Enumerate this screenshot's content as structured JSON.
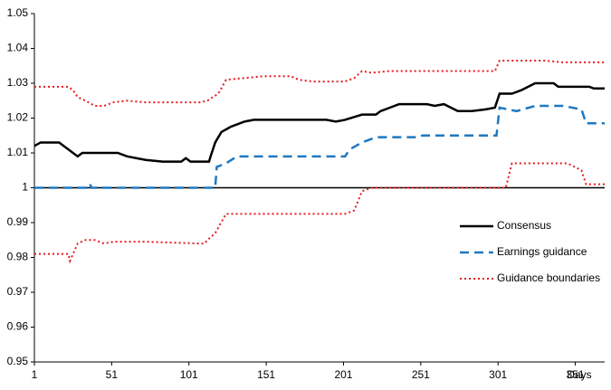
{
  "chart_data": {
    "type": "line",
    "x_label": "Days",
    "xlim": [
      1,
      370
    ],
    "xticks": [
      1,
      51,
      101,
      151,
      201,
      251,
      301,
      351
    ],
    "ylim": [
      0.95,
      1.05
    ],
    "yticks": [
      0.95,
      0.96,
      0.97,
      0.98,
      0.99,
      1,
      1.01,
      1.02,
      1.03,
      1.04,
      1.05
    ],
    "reference_line": 1,
    "grid": false,
    "legend": "right",
    "series": [
      {
        "name": "Consensus",
        "color": "#000000",
        "dash": "solid",
        "x": [
          1,
          5,
          17,
          29,
          32,
          55,
          61,
          73,
          84,
          96,
          99,
          102,
          114,
          115,
          118,
          122,
          128,
          137,
          143,
          190,
          196,
          202,
          213,
          222,
          225,
          237,
          255,
          260,
          266,
          275,
          284,
          293,
          299,
          302,
          310,
          316,
          325,
          337,
          340,
          360,
          363,
          370
        ],
        "values": [
          1.012,
          1.013,
          1.013,
          1.009,
          1.01,
          1.01,
          1.009,
          1.008,
          1.0075,
          1.0075,
          1.0085,
          1.0075,
          1.0075,
          1.009,
          1.013,
          1.016,
          1.0175,
          1.019,
          1.0195,
          1.0195,
          1.019,
          1.0195,
          1.021,
          1.021,
          1.022,
          1.024,
          1.024,
          1.0235,
          1.024,
          1.022,
          1.022,
          1.0225,
          1.023,
          1.027,
          1.027,
          1.028,
          1.03,
          1.03,
          1.029,
          1.029,
          1.0285,
          1.0285
        ]
      },
      {
        "name": "Earnings guidance",
        "color": "#1f78c1",
        "dash": "dashed",
        "x": [
          1,
          36,
          37,
          38,
          118,
          119,
          125,
          132,
          202,
          205,
          213,
          222,
          249,
          252,
          300,
          302,
          313,
          325,
          343,
          349,
          355,
          358,
          370
        ],
        "values": [
          1.0,
          1.0,
          1.001,
          1.0,
          1.0,
          1.006,
          1.007,
          1.009,
          1.009,
          1.011,
          1.013,
          1.0145,
          1.0145,
          1.015,
          1.015,
          1.023,
          1.022,
          1.0235,
          1.0235,
          1.023,
          1.0225,
          1.0185,
          1.0185
        ]
      },
      {
        "name": "Guidance boundaries",
        "color": "#e8191f",
        "dash": "dotted",
        "x": [
          1,
          23,
          26,
          29,
          34,
          40,
          46,
          52,
          61,
          73,
          108,
          113,
          120,
          125,
          137,
          149,
          167,
          172,
          181,
          202,
          208,
          213,
          219,
          231,
          299,
          302,
          331,
          343,
          370
        ],
        "values": [
          1.029,
          1.029,
          1.028,
          1.026,
          1.025,
          1.0235,
          1.0235,
          1.0245,
          1.025,
          1.0245,
          1.0245,
          1.025,
          1.027,
          1.031,
          1.0315,
          1.032,
          1.032,
          1.031,
          1.0305,
          1.0305,
          1.0315,
          1.0335,
          1.033,
          1.0335,
          1.0335,
          1.0365,
          1.0365,
          1.036,
          1.036
        ]
      },
      {
        "color": "#e8191f",
        "dash": "dotted",
        "x": [
          1,
          23,
          24,
          29,
          34,
          40,
          46,
          52,
          73,
          108,
          111,
          113,
          118,
          125,
          202,
          208,
          213,
          219,
          306,
          310,
          346,
          355,
          358,
          370
        ],
        "values": [
          0.981,
          0.981,
          0.979,
          0.984,
          0.985,
          0.985,
          0.984,
          0.9845,
          0.9845,
          0.984,
          0.984,
          0.985,
          0.987,
          0.9925,
          0.9925,
          0.9935,
          0.999,
          1.0,
          1.0,
          1.007,
          1.007,
          1.005,
          1.001,
          1.001
        ]
      }
    ]
  }
}
